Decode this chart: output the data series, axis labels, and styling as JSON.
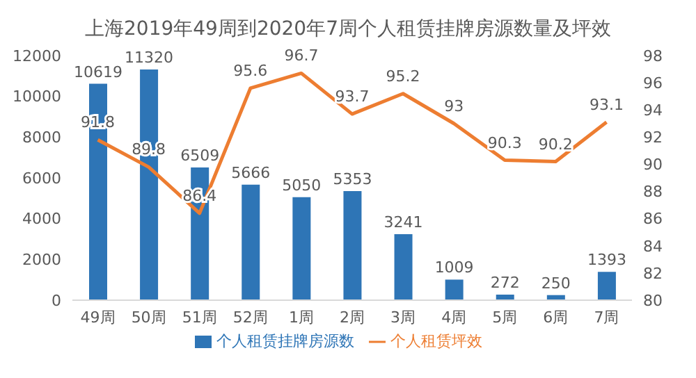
{
  "chart_data": {
    "type": "bar",
    "title": "上海2019年49周到2020年7周个人租赁挂牌房源数量及坪效",
    "categories": [
      "49周",
      "50周",
      "51周",
      "52周",
      "1周",
      "2周",
      "3周",
      "4周",
      "5周",
      "6周",
      "7周"
    ],
    "series": [
      {
        "name": "个人租赁挂牌房源数",
        "color": "#2e75b6",
        "values": [
          10619,
          11320,
          6509,
          5666,
          5050,
          5353,
          3241,
          1009,
          272,
          250,
          1393
        ]
      },
      {
        "name": "个人租赁坪效",
        "type": "line",
        "axis": "y2",
        "color": "#ed7d31",
        "values": [
          91.8,
          89.8,
          86.4,
          95.6,
          96.7,
          93.7,
          95.2,
          93,
          90.3,
          90.2,
          93.1
        ]
      }
    ],
    "ylim": [
      0,
      12000
    ],
    "yticks": [
      0,
      2000,
      4000,
      6000,
      8000,
      10000,
      12000
    ],
    "y2lim": [
      80,
      98
    ],
    "y2ticks": [
      80,
      82,
      84,
      86,
      88,
      90,
      92,
      94,
      96,
      98
    ],
    "data_labels": true,
    "legend": "bottom",
    "grid": false,
    "marker": "none"
  }
}
